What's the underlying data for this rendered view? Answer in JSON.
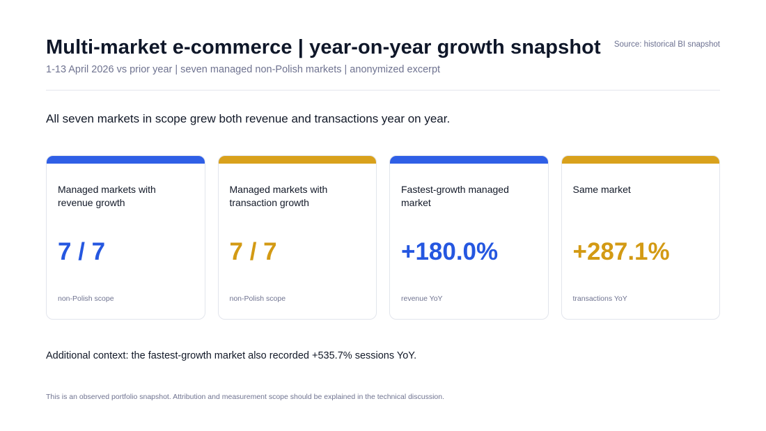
{
  "header": {
    "title": "Multi-market e-commerce | year-on-year growth snapshot",
    "source": "Source: historical BI snapshot",
    "subtitle": "1-13 April 2026 vs prior year | seven managed non-Polish markets | anonymized excerpt"
  },
  "headline": "All seven markets in scope grew both revenue and transactions year on year.",
  "colors": {
    "blue_accent": "#2f5fe6",
    "gold_accent": "#d9a11c"
  },
  "cards": [
    {
      "label": "Managed markets with revenue growth",
      "value": "7 / 7",
      "note": "non-Polish scope",
      "accent": "blue"
    },
    {
      "label": "Managed markets with transaction growth",
      "value": "7 / 7",
      "note": "non-Polish scope",
      "accent": "gold"
    },
    {
      "label": "Fastest-growth managed market",
      "value": "+180.0%",
      "note": "revenue YoY",
      "accent": "blue"
    },
    {
      "label": "Same market",
      "value": "+287.1%",
      "note": "transactions YoY",
      "accent": "gold"
    }
  ],
  "context": "Additional context: the fastest-growth market also recorded +535.7% sessions YoY.",
  "footnote": "This is an observed portfolio snapshot. Attribution and measurement scope should be explained in the technical discussion."
}
